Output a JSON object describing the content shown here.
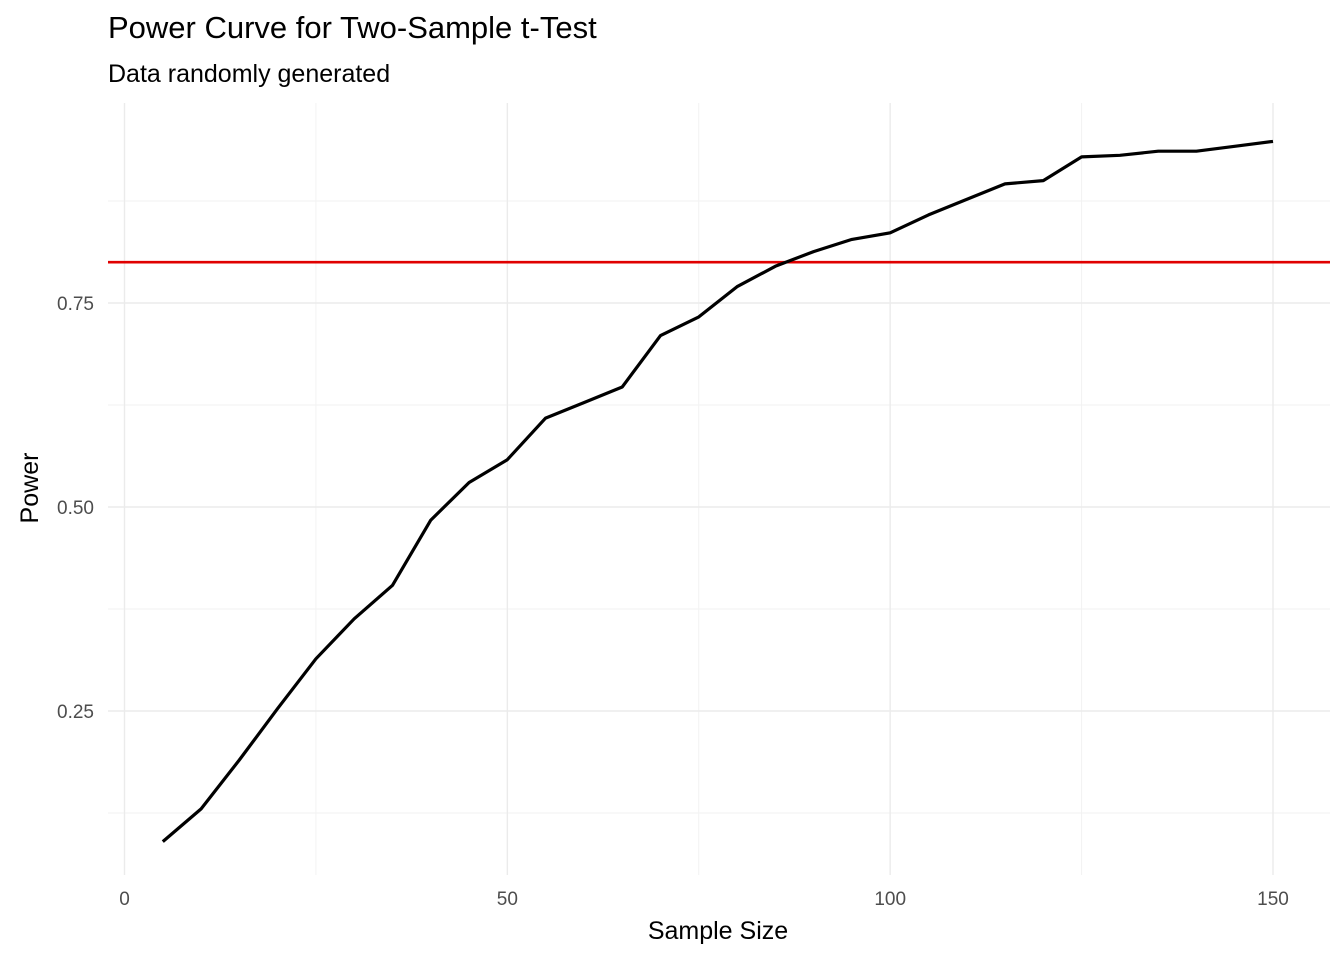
{
  "chart_data": {
    "type": "line",
    "title": "Power Curve for Two-Sample t-Test",
    "subtitle": "Data randomly generated",
    "xlabel": "Sample Size",
    "ylabel": "Power",
    "xlim": [
      0,
      150
    ],
    "ylim": [
      0.09,
      0.95
    ],
    "x_ticks": [
      0,
      50,
      100,
      150
    ],
    "x_tick_labels": [
      "0",
      "50",
      "100",
      "150"
    ],
    "y_ticks": [
      0.25,
      0.5,
      0.75
    ],
    "y_tick_labels": [
      "0.25",
      "0.50",
      "0.75"
    ],
    "grid": true,
    "series": [
      {
        "color": "#000000",
        "x": [
          5,
          10,
          15,
          20,
          25,
          30,
          35,
          40,
          45,
          50,
          55,
          60,
          65,
          70,
          75,
          80,
          85,
          90,
          95,
          100,
          105,
          110,
          115,
          120,
          125,
          130,
          135,
          140,
          145,
          150
        ],
        "y": [
          0.09,
          0.13,
          0.19,
          0.253,
          0.314,
          0.363,
          0.404,
          0.484,
          0.53,
          0.558,
          0.609,
          0.628,
          0.647,
          0.71,
          0.733,
          0.77,
          0.795,
          0.813,
          0.828,
          0.836,
          0.858,
          0.877,
          0.896,
          0.9,
          0.929,
          0.931,
          0.936,
          0.936,
          0.942,
          0.948
        ]
      }
    ],
    "hline": {
      "y": 0.8,
      "color": "#e00000"
    }
  }
}
